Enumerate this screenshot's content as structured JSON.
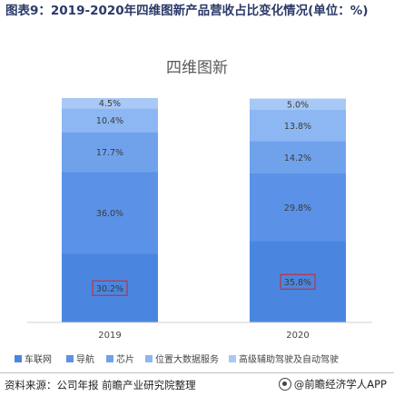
{
  "figure_title": "图表9：2019-2020年四维图新产品营收占比变化情况(单位：%)",
  "source_text": "资料来源：公司年报 前瞻产业研究院整理",
  "brand_text": "@前瞻经济学人APP",
  "watermark_text": "前瞻产业研究院",
  "chart_data": {
    "type": "bar",
    "stacked": true,
    "title": "四维图新",
    "categories": [
      "2019",
      "2020"
    ],
    "series": [
      {
        "name": "车联网",
        "values": [
          30.2,
          35.8
        ],
        "color": "#4a86e0",
        "label_boxed": true
      },
      {
        "name": "导航",
        "values": [
          36.0,
          29.8
        ],
        "color": "#5b92e8"
      },
      {
        "name": "芯片",
        "values": [
          17.7,
          14.2
        ],
        "color": "#70a2ec"
      },
      {
        "name": "位置大数据服务",
        "values": [
          10.4,
          13.8
        ],
        "color": "#8cb7f2"
      },
      {
        "name": "高级辅助驾驶及自动驾驶",
        "values": [
          4.5,
          5.0
        ],
        "color": "#a8c8f6"
      }
    ],
    "value_labels": [
      [
        "30.2%",
        "36.0%",
        "17.7%",
        "10.4%",
        "4.5%"
      ],
      [
        "35.8%",
        "29.8%",
        "14.2%",
        "13.8%",
        "5.0%"
      ]
    ],
    "ylim": [
      0,
      100
    ],
    "grid": false,
    "legend_position": "bottom"
  }
}
